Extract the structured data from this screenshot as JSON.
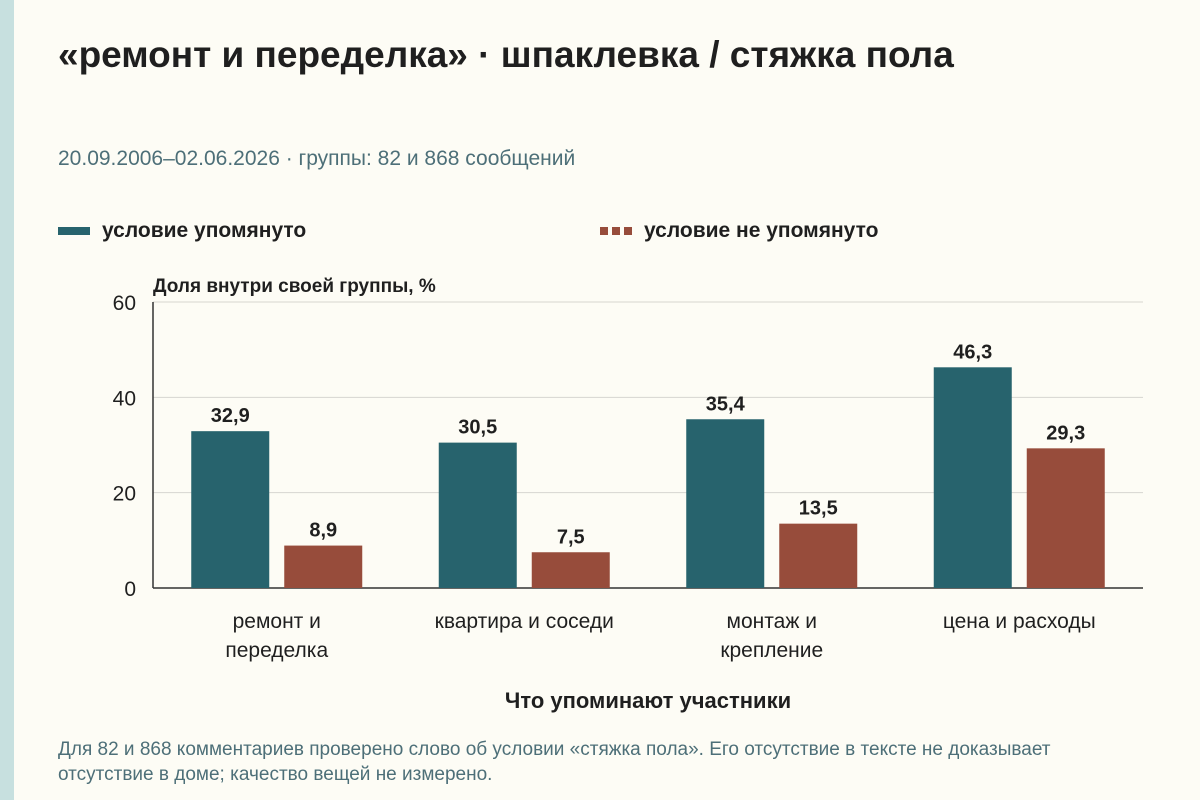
{
  "title": "«ремонт и переделка» · шпаклевка / стяжка пола",
  "subtitle": "20.09.2006–02.06.2026 · группы: 82 и 868 сообщений",
  "note": "Для 82 и 868 комментариев проверено слово об условии «стяжка пола». Его отсутствие в тексте не доказывает отсутствие в доме; качество вещей не измерено.",
  "colors": {
    "mentioned": "#27636d",
    "not_mentioned": "#974c3b",
    "background": "#fdfcf5",
    "accent_strip": "#c7e0df"
  },
  "legend": {
    "position": "top"
  },
  "chart_data": {
    "type": "bar",
    "ylabel": "Доля внутри своей группы, %",
    "xlabel": "Что упоминают участники",
    "ylim": [
      0,
      60
    ],
    "yticks": [
      "0",
      "20",
      "40",
      "60"
    ],
    "grid": true,
    "categories": [
      [
        "ремонт и",
        "переделка"
      ],
      [
        "квартира и соседи"
      ],
      [
        "монтаж и",
        "крепление"
      ],
      [
        "цена и расходы"
      ]
    ],
    "series": [
      {
        "name": "условие упомянуто",
        "values": [
          32.9,
          30.5,
          35.4,
          46.3
        ],
        "labels": [
          "32,9",
          "30,5",
          "35,4",
          "46,3"
        ],
        "color": "#27636d"
      },
      {
        "name": "условие не упомянуто",
        "values": [
          8.9,
          7.5,
          13.5,
          29.3
        ],
        "labels": [
          "8,9",
          "7,5",
          "13,5",
          "29,3"
        ],
        "color": "#974c3b"
      }
    ]
  }
}
